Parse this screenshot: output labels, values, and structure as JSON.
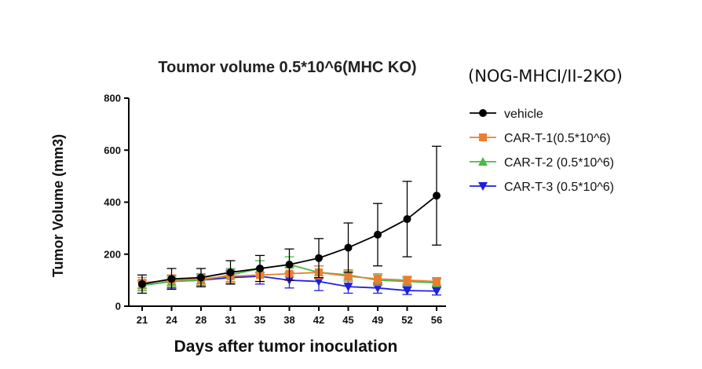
{
  "chart_data": {
    "type": "line",
    "title": "Toumor volume 0.5*10^6(MHC KO)",
    "subtitle": "(NOG-MHCI/II-2KO)",
    "xlabel": "Days after tumor inoculation",
    "ylabel": "Tumor Volume (mm3)",
    "x": [
      21,
      24,
      28,
      31,
      35,
      38,
      42,
      45,
      49,
      52,
      56
    ],
    "ylim": [
      0,
      800
    ],
    "yticks": [
      0,
      200,
      400,
      600,
      800
    ],
    "legend_position": "right",
    "grid": false,
    "series": [
      {
        "name": "vehicle",
        "color": "#000000",
        "marker": "circle",
        "values": [
          85,
          105,
          110,
          130,
          145,
          160,
          185,
          225,
          275,
          335,
          425
        ],
        "error": [
          35,
          40,
          35,
          45,
          50,
          60,
          75,
          95,
          120,
          145,
          190
        ]
      },
      {
        "name": "CAR-T-1(0.5*10^6)",
        "color": "#ed7d31",
        "marker": "square",
        "values": [
          90,
          100,
          105,
          115,
          120,
          125,
          130,
          115,
          105,
          100,
          95
        ],
        "error": [
          20,
          20,
          20,
          25,
          25,
          25,
          25,
          20,
          20,
          15,
          15
        ]
      },
      {
        "name": "CAR-T-2 (0.5*10^6)",
        "color": "#4cb848",
        "marker": "triangle-up",
        "values": [
          80,
          95,
          100,
          120,
          145,
          160,
          130,
          120,
          100,
          95,
          90
        ],
        "error": [
          20,
          20,
          20,
          25,
          30,
          30,
          25,
          20,
          20,
          15,
          15
        ]
      },
      {
        "name": "CAR-T-3 (0.5*10^6)",
        "color": "#1f1fe0",
        "marker": "triangle-down",
        "values": [
          80,
          95,
          100,
          110,
          115,
          100,
          95,
          75,
          70,
          60,
          58
        ],
        "error": [
          20,
          25,
          25,
          25,
          30,
          30,
          35,
          25,
          20,
          15,
          15
        ]
      }
    ]
  }
}
